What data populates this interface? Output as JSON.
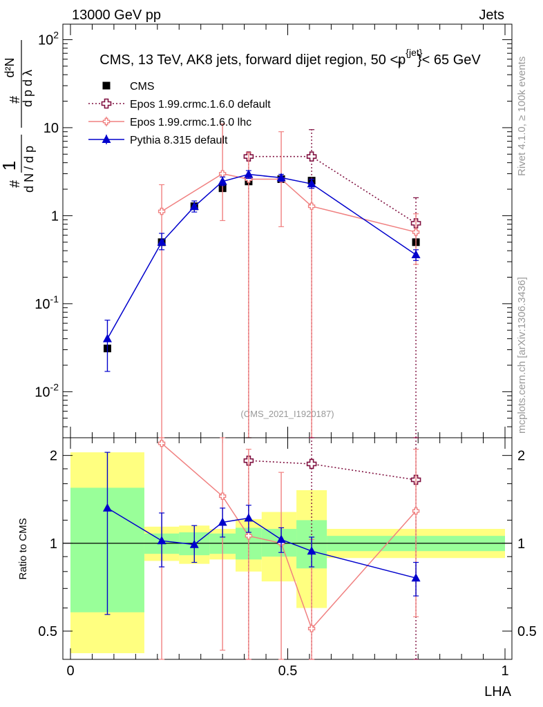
{
  "header": {
    "left": "13000 GeV pp",
    "right": "Jets",
    "title": "CMS, 13 TeV, AK8 jets, forward dijet region, 50 <p_T^{jet}< 65 GeV",
    "side_top": "Rivet 4.1.0, ≥ 100k events",
    "side_bottom": "mcplots.cern.ch [arXiv:1306.3436]",
    "analysis_id": "(CMS_2021_I1920187)"
  },
  "chart_data": {
    "type": "scatter",
    "title": "CMS, 13 TeV, AK8 jets, forward dijet region, 50 <p_T^{jet}< 65 GeV",
    "xlabel": "LHA",
    "ylabel": "1/dN/dp_T  d²N/dp_T dλ",
    "ratio_ylabel": "Ratio to CMS",
    "xlim": [
      0,
      1
    ],
    "ylim": [
      0.003,
      150
    ],
    "yscale": "log",
    "ratio_ylim": [
      0.4,
      2.3
    ],
    "y_ticks": [
      "10^{-2}",
      "10^{-1}",
      "1",
      "10",
      "10^{2}"
    ],
    "x_ticks": [
      "0",
      "0.5",
      "1"
    ],
    "ratio_ticks": [
      "0.5",
      "1",
      "2"
    ],
    "bins": [
      [
        0.0,
        0.17
      ],
      [
        0.17,
        0.25
      ],
      [
        0.25,
        0.32
      ],
      [
        0.32,
        0.38
      ],
      [
        0.38,
        0.44
      ],
      [
        0.44,
        0.52
      ],
      [
        0.52,
        0.59
      ],
      [
        0.59,
        1.0
      ]
    ],
    "band_yellow": [
      [
        0.42,
        2.05
      ],
      [
        0.87,
        1.14
      ],
      [
        0.85,
        1.15
      ],
      [
        0.88,
        1.12
      ],
      [
        0.8,
        1.21
      ],
      [
        0.74,
        1.28
      ],
      [
        0.6,
        1.52
      ],
      [
        0.89,
        1.12
      ]
    ],
    "band_green": [
      [
        0.58,
        1.55
      ],
      [
        0.92,
        1.08
      ],
      [
        0.91,
        1.09
      ],
      [
        0.92,
        1.08
      ],
      [
        0.88,
        1.13
      ],
      [
        0.9,
        1.12
      ],
      [
        0.82,
        1.2
      ],
      [
        0.94,
        1.06
      ]
    ],
    "legend": [
      "CMS",
      "Epos 1.99.crmc.1.6.0 default",
      "Epos 1.99.crmc.1.6.0 lhc",
      "Pythia 8.315 default"
    ],
    "series": [
      {
        "name": "CMS",
        "color": "#000000",
        "marker": "square",
        "line": "none",
        "points": [
          {
            "x": 0.085,
            "y": 0.031,
            "lo": 0.031,
            "hi": 0.031
          },
          {
            "x": 0.21,
            "y": 0.5,
            "lo": 0.5,
            "hi": 0.5
          },
          {
            "x": 0.285,
            "y": 1.28,
            "lo": 1.28,
            "hi": 1.28
          },
          {
            "x": 0.35,
            "y": 2.05,
            "lo": 2.05,
            "hi": 2.05
          },
          {
            "x": 0.41,
            "y": 2.45,
            "lo": 2.45,
            "hi": 2.45
          },
          {
            "x": 0.485,
            "y": 2.6,
            "lo": 2.6,
            "hi": 2.6
          },
          {
            "x": 0.555,
            "y": 2.5,
            "lo": 2.5,
            "hi": 2.5
          },
          {
            "x": 0.795,
            "y": 0.5,
            "lo": 0.5,
            "hi": 0.5
          }
        ],
        "ratio": []
      },
      {
        "name": "Epos 1.99.crmc.1.6.0 default",
        "color": "#7f0f3f",
        "marker": "cross-open",
        "line": "dotted",
        "points": [
          {
            "x": 0.41,
            "y": 4.7,
            "lo": 0.0001,
            "hi": 4.7
          },
          {
            "x": 0.555,
            "y": 4.7,
            "lo": 0.0001,
            "hi": 9.5
          },
          {
            "x": 0.795,
            "y": 0.82,
            "lo": 0.0001,
            "hi": 1.6
          }
        ],
        "ratio": [
          {
            "x": 0.41,
            "y": 1.92,
            "lo": 0.01,
            "hi": 1.92
          },
          {
            "x": 0.555,
            "y": 1.87,
            "lo": 0.01,
            "hi": 3.0
          },
          {
            "x": 0.795,
            "y": 1.65,
            "lo": 0.01,
            "hi": 3.0
          }
        ]
      },
      {
        "name": "Epos 1.99.crmc.1.6.0 lhc",
        "color": "#f08080",
        "marker": "cross-small",
        "line": "solid",
        "points": [
          {
            "x": 0.21,
            "y": 1.12,
            "lo": 0.0001,
            "hi": 2.25
          },
          {
            "x": 0.35,
            "y": 3.0,
            "lo": 0.88,
            "hi": 11.0
          },
          {
            "x": 0.41,
            "y": 2.6,
            "lo": 0.0001,
            "hi": 5.2
          },
          {
            "x": 0.485,
            "y": 2.6,
            "lo": 0.75,
            "hi": 9.0
          },
          {
            "x": 0.555,
            "y": 1.28,
            "lo": 0.0001,
            "hi": 2.6
          },
          {
            "x": 0.795,
            "y": 0.65,
            "lo": 0.28,
            "hi": 1.05
          }
        ],
        "ratio": [
          {
            "x": 0.21,
            "y": 2.2,
            "lo": 0.01,
            "hi": 4.4
          },
          {
            "x": 0.35,
            "y": 1.45,
            "lo": 0.43,
            "hi": 5.2
          },
          {
            "x": 0.41,
            "y": 1.06,
            "lo": 0.01,
            "hi": 2.1
          },
          {
            "x": 0.485,
            "y": 1.0,
            "lo": 0.29,
            "hi": 1.75
          },
          {
            "x": 0.555,
            "y": 0.51,
            "lo": 0.01,
            "hi": 1.03
          },
          {
            "x": 0.795,
            "y": 1.29,
            "lo": 0.56,
            "hi": 2.1
          }
        ]
      },
      {
        "name": "Pythia 8.315 default",
        "color": "#0000cc",
        "marker": "triangle",
        "line": "solid",
        "points": [
          {
            "x": 0.085,
            "y": 0.04,
            "lo": 0.017,
            "hi": 0.065
          },
          {
            "x": 0.21,
            "y": 0.5,
            "lo": 0.41,
            "hi": 0.63
          },
          {
            "x": 0.285,
            "y": 1.27,
            "lo": 1.1,
            "hi": 1.47
          },
          {
            "x": 0.35,
            "y": 2.45,
            "lo": 2.2,
            "hi": 2.75
          },
          {
            "x": 0.41,
            "y": 2.95,
            "lo": 2.65,
            "hi": 3.25
          },
          {
            "x": 0.485,
            "y": 2.7,
            "lo": 2.45,
            "hi": 2.95
          },
          {
            "x": 0.555,
            "y": 2.3,
            "lo": 2.05,
            "hi": 2.6
          },
          {
            "x": 0.795,
            "y": 0.36,
            "lo": 0.31,
            "hi": 0.41
          }
        ],
        "ratio": [
          {
            "x": 0.085,
            "y": 1.32,
            "lo": 0.57,
            "hi": 2.05
          },
          {
            "x": 0.21,
            "y": 1.02,
            "lo": 0.83,
            "hi": 1.27
          },
          {
            "x": 0.285,
            "y": 0.99,
            "lo": 0.86,
            "hi": 1.15
          },
          {
            "x": 0.35,
            "y": 1.18,
            "lo": 1.05,
            "hi": 1.32
          },
          {
            "x": 0.41,
            "y": 1.22,
            "lo": 1.09,
            "hi": 1.35
          },
          {
            "x": 0.485,
            "y": 1.03,
            "lo": 0.93,
            "hi": 1.13
          },
          {
            "x": 0.555,
            "y": 0.94,
            "lo": 0.83,
            "hi": 1.05
          },
          {
            "x": 0.795,
            "y": 0.76,
            "lo": 0.66,
            "hi": 0.86
          }
        ]
      }
    ]
  }
}
